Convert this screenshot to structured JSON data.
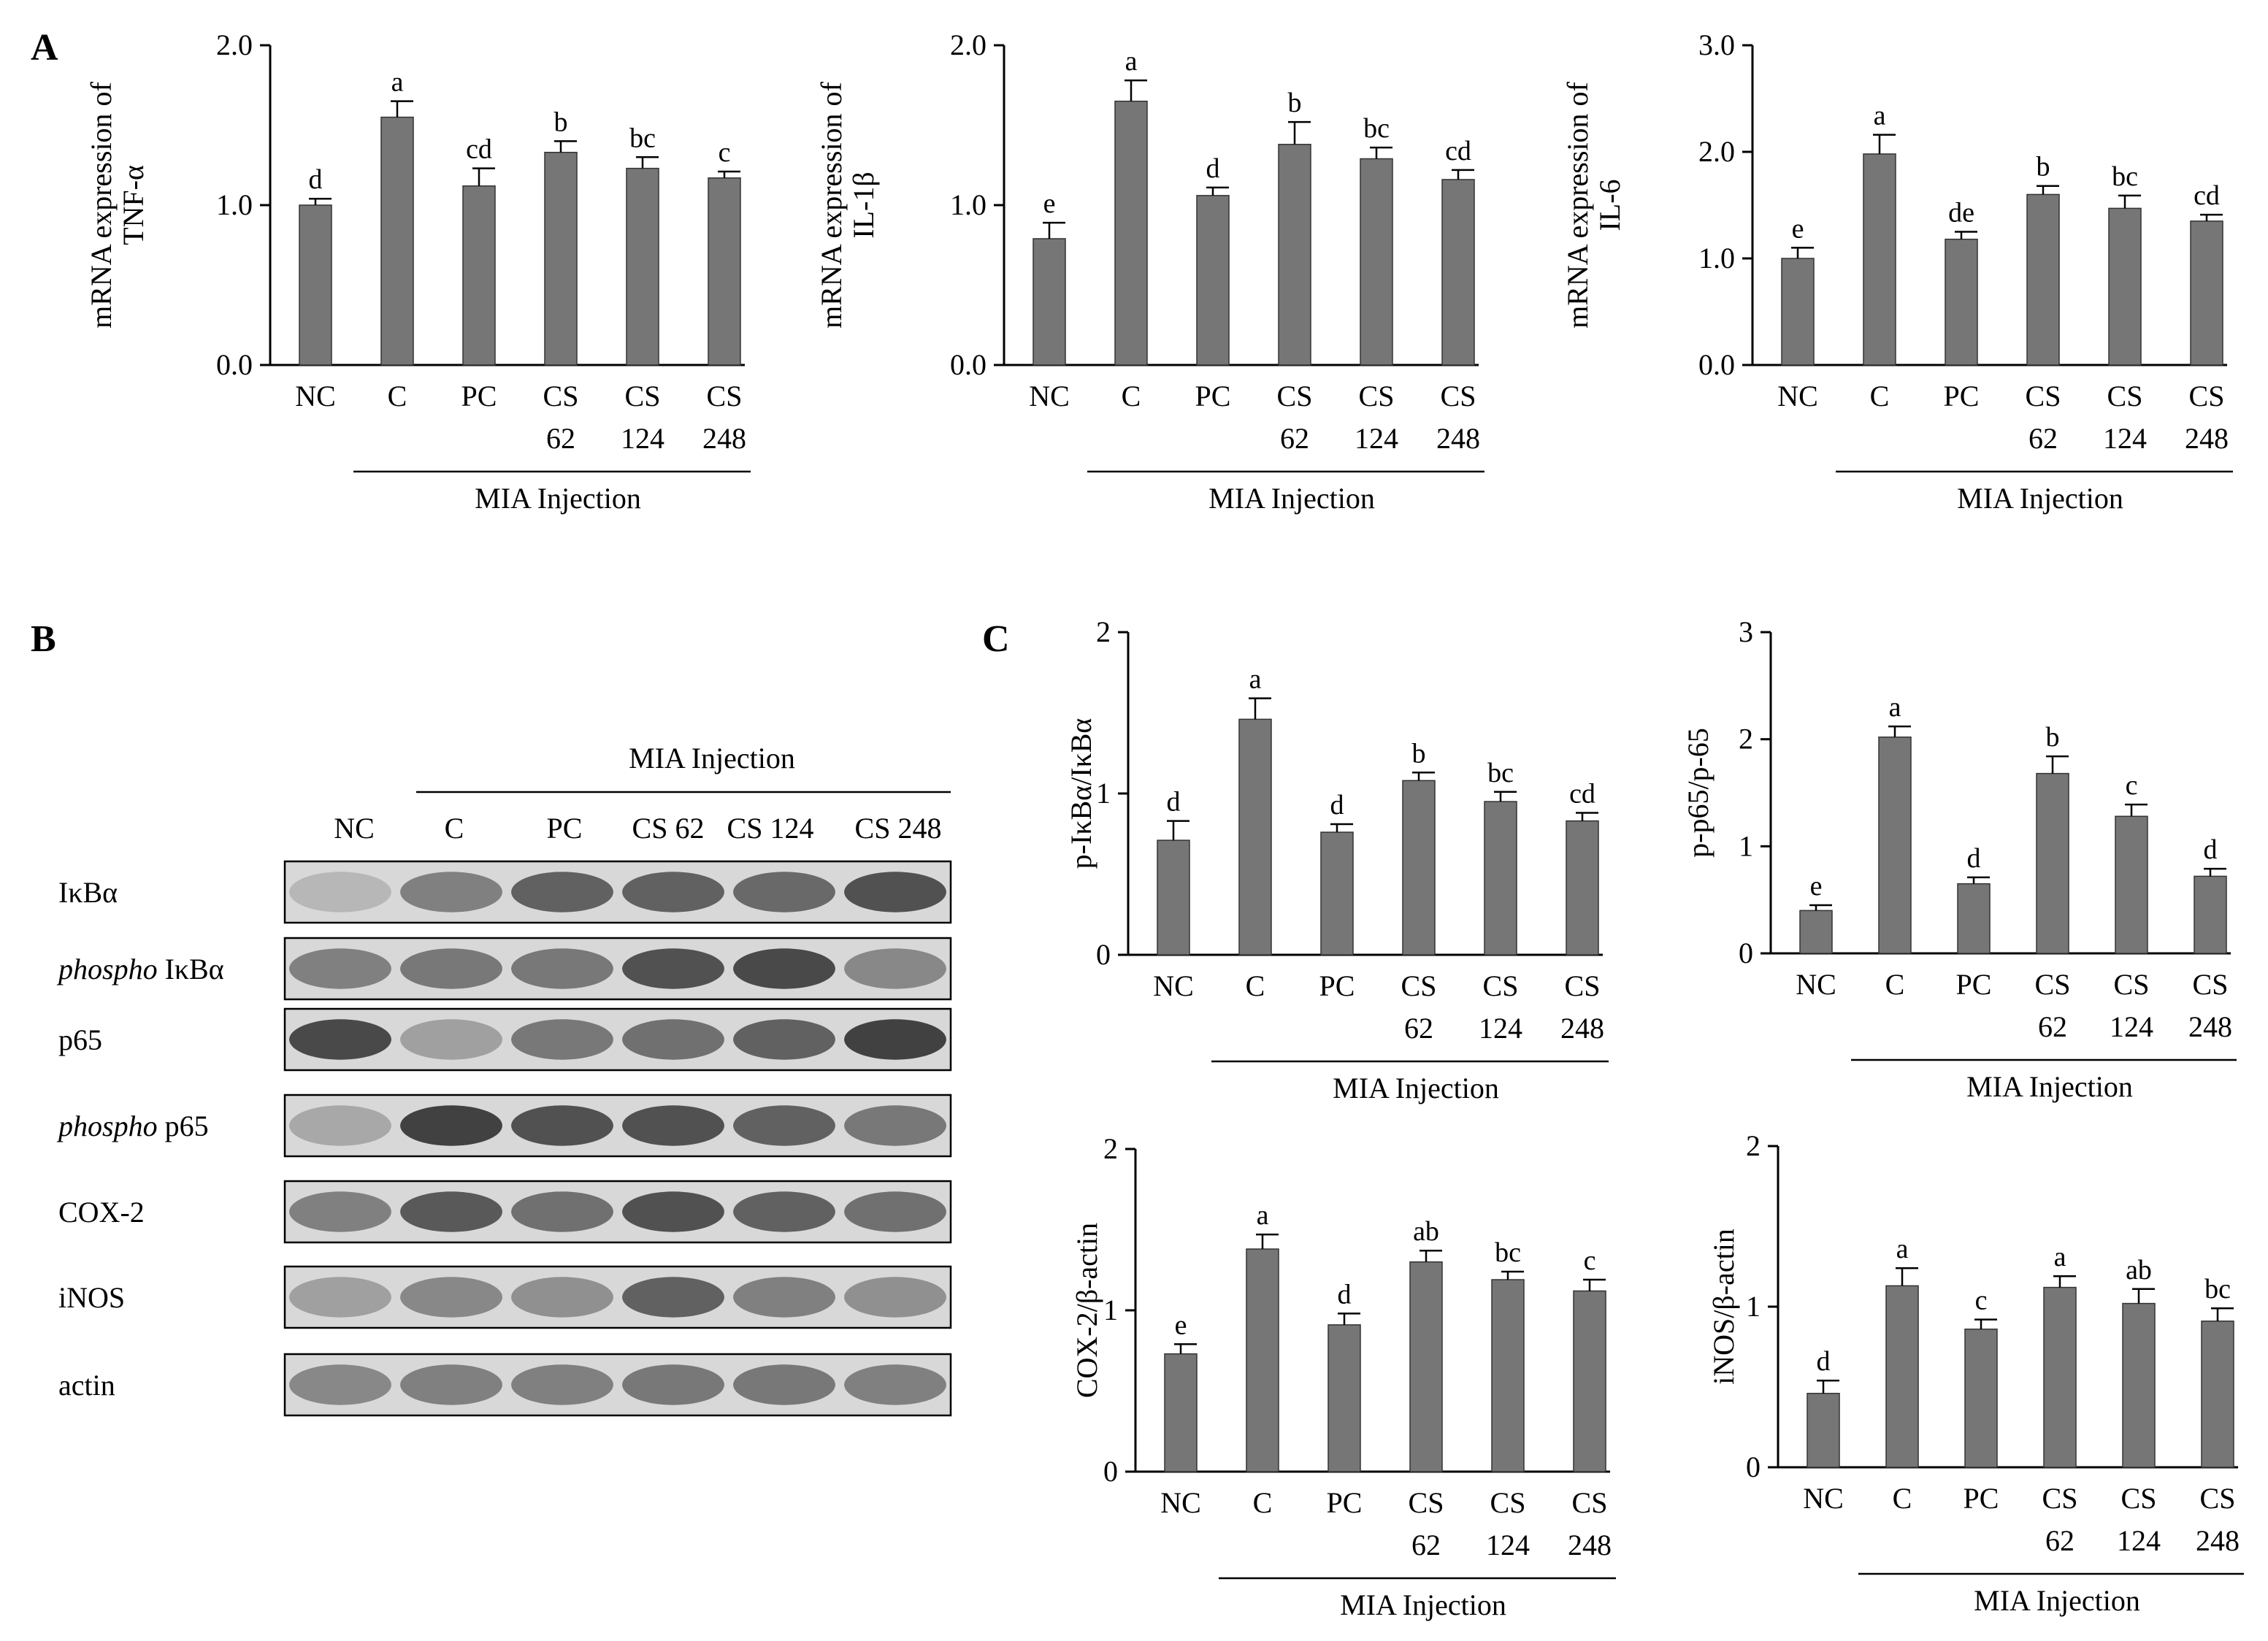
{
  "panels": {
    "a": "A",
    "b": "B",
    "c": "C"
  },
  "colors": {
    "bar": "#767676",
    "axis": "#000000"
  },
  "group_label": "MIA Injection",
  "blot": {
    "lanes": [
      "NC",
      "C",
      "PC",
      "CS 62",
      "CS 124",
      "CS 248"
    ],
    "rows": [
      {
        "prefix": "",
        "label": "IκBα",
        "intensity": [
          0.2,
          0.55,
          0.75,
          0.75,
          0.7,
          0.85
        ]
      },
      {
        "prefix": "phospho",
        "label": " IκBα",
        "intensity": [
          0.55,
          0.6,
          0.6,
          0.85,
          0.9,
          0.5
        ]
      },
      {
        "prefix": "",
        "label": "p65",
        "intensity": [
          0.9,
          0.35,
          0.6,
          0.65,
          0.75,
          0.95
        ]
      },
      {
        "prefix": "phospho",
        "label": " p65",
        "intensity": [
          0.3,
          0.95,
          0.85,
          0.85,
          0.75,
          0.6
        ]
      },
      {
        "prefix": "",
        "label": "COX-2",
        "intensity": [
          0.55,
          0.8,
          0.65,
          0.85,
          0.75,
          0.65
        ]
      },
      {
        "prefix": "",
        "label": "iNOS",
        "intensity": [
          0.35,
          0.5,
          0.45,
          0.75,
          0.55,
          0.45
        ]
      },
      {
        "prefix": "",
        "label": "actin",
        "intensity": [
          0.5,
          0.55,
          0.55,
          0.6,
          0.6,
          0.55
        ]
      }
    ]
  },
  "chart_data": [
    {
      "type": "bar",
      "ylabel": [
        "mRNA expression of",
        "TNF-α"
      ],
      "categories": [
        [
          "NC"
        ],
        [
          "C"
        ],
        [
          "PC"
        ],
        [
          "CS",
          "62"
        ],
        [
          "CS",
          "124"
        ],
        [
          "CS",
          "248"
        ]
      ],
      "values": [
        1.0,
        1.55,
        1.12,
        1.33,
        1.23,
        1.17
      ],
      "errors": [
        0.04,
        0.1,
        0.11,
        0.07,
        0.07,
        0.04
      ],
      "letters": [
        "d",
        "a",
        "cd",
        "b",
        "bc",
        "c"
      ],
      "ylim": [
        0,
        2
      ],
      "yticks": [
        "0.0",
        "1.0",
        "2.0"
      ]
    },
    {
      "type": "bar",
      "ylabel": [
        "mRNA expression of",
        "IL-1β"
      ],
      "categories": [
        [
          "NC"
        ],
        [
          "C"
        ],
        [
          "PC"
        ],
        [
          "CS",
          "62"
        ],
        [
          "CS",
          "124"
        ],
        [
          "CS",
          "248"
        ]
      ],
      "values": [
        0.79,
        1.65,
        1.06,
        1.38,
        1.29,
        1.16
      ],
      "errors": [
        0.1,
        0.13,
        0.05,
        0.14,
        0.07,
        0.06
      ],
      "letters": [
        "e",
        "a",
        "d",
        "b",
        "bc",
        "cd"
      ],
      "ylim": [
        0,
        2
      ],
      "yticks": [
        "0.0",
        "1.0",
        "2.0"
      ]
    },
    {
      "type": "bar",
      "ylabel": [
        "mRNA expression of",
        "IL-6"
      ],
      "categories": [
        [
          "NC"
        ],
        [
          "C"
        ],
        [
          "PC"
        ],
        [
          "CS",
          "62"
        ],
        [
          "CS",
          "124"
        ],
        [
          "CS",
          "248"
        ]
      ],
      "values": [
        1.0,
        1.98,
        1.18,
        1.6,
        1.47,
        1.35
      ],
      "errors": [
        0.1,
        0.18,
        0.07,
        0.08,
        0.12,
        0.06
      ],
      "letters": [
        "e",
        "a",
        "de",
        "b",
        "bc",
        "cd"
      ],
      "ylim": [
        0,
        3
      ],
      "yticks": [
        "0.0",
        "1.0",
        "2.0",
        "3.0"
      ]
    },
    {
      "type": "bar",
      "ylabel": [
        "p-IκBα/IκBα"
      ],
      "categories": [
        [
          "NC"
        ],
        [
          "C"
        ],
        [
          "PC"
        ],
        [
          "CS",
          "62"
        ],
        [
          "CS",
          "124"
        ],
        [
          "CS",
          "248"
        ]
      ],
      "values": [
        0.71,
        1.46,
        0.76,
        1.08,
        0.95,
        0.83
      ],
      "errors": [
        0.12,
        0.13,
        0.05,
        0.05,
        0.06,
        0.05
      ],
      "letters": [
        "d",
        "a",
        "d",
        "b",
        "bc",
        "cd"
      ],
      "ylim": [
        0,
        2
      ],
      "yticks": [
        "0",
        "1",
        "2"
      ]
    },
    {
      "type": "bar",
      "ylabel": [
        "p-p65/p-65"
      ],
      "categories": [
        [
          "NC"
        ],
        [
          "C"
        ],
        [
          "PC"
        ],
        [
          "CS",
          "62"
        ],
        [
          "CS",
          "124"
        ],
        [
          "CS",
          "248"
        ]
      ],
      "values": [
        0.4,
        2.02,
        0.65,
        1.68,
        1.28,
        0.72
      ],
      "errors": [
        0.05,
        0.1,
        0.06,
        0.16,
        0.11,
        0.07
      ],
      "letters": [
        "e",
        "a",
        "d",
        "b",
        "c",
        "d"
      ],
      "ylim": [
        0,
        3
      ],
      "yticks": [
        "0",
        "1",
        "2",
        "3"
      ]
    },
    {
      "type": "bar",
      "ylabel": [
        "COX-2/β-actin"
      ],
      "categories": [
        [
          "NC"
        ],
        [
          "C"
        ],
        [
          "PC"
        ],
        [
          "CS",
          "62"
        ],
        [
          "CS",
          "124"
        ],
        [
          "CS",
          "248"
        ]
      ],
      "values": [
        0.73,
        1.38,
        0.91,
        1.3,
        1.19,
        1.12
      ],
      "errors": [
        0.06,
        0.09,
        0.07,
        0.07,
        0.05,
        0.07
      ],
      "letters": [
        "e",
        "a",
        "d",
        "ab",
        "bc",
        "c"
      ],
      "ylim": [
        0,
        2
      ],
      "yticks": [
        "0",
        "1",
        "2"
      ]
    },
    {
      "type": "bar",
      "ylabel": [
        "iNOS/β-actin"
      ],
      "categories": [
        [
          "NC"
        ],
        [
          "C"
        ],
        [
          "PC"
        ],
        [
          "CS",
          "62"
        ],
        [
          "CS",
          "124"
        ],
        [
          "CS",
          "248"
        ]
      ],
      "values": [
        0.46,
        1.13,
        0.86,
        1.12,
        1.02,
        0.91
      ],
      "errors": [
        0.08,
        0.11,
        0.06,
        0.07,
        0.09,
        0.08
      ],
      "letters": [
        "d",
        "a",
        "c",
        "a",
        "ab",
        "bc"
      ],
      "ylim": [
        0,
        2
      ],
      "yticks": [
        "0",
        "1",
        "2"
      ]
    }
  ]
}
